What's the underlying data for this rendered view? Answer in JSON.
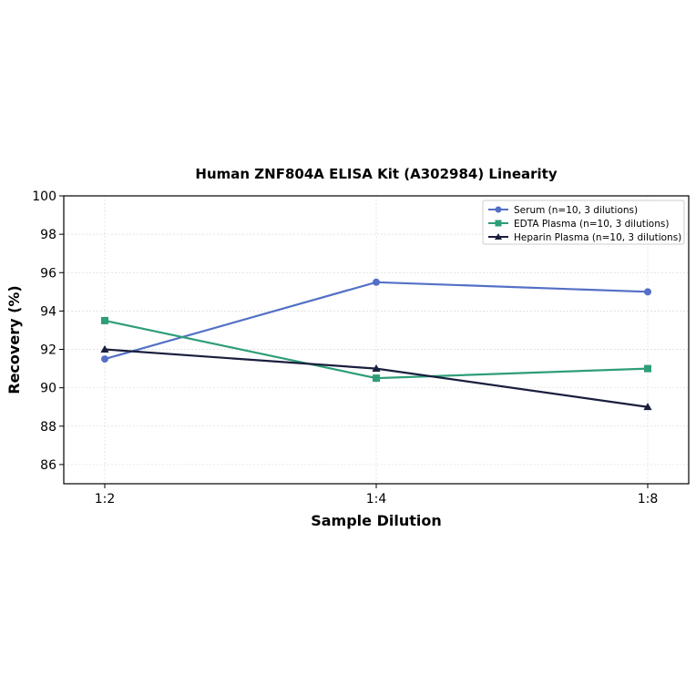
{
  "chart_data": {
    "type": "line",
    "title": "Human ZNF804A ELISA Kit (A302984) Linearity",
    "xlabel": "Sample Dilution",
    "ylabel": "Recovery (%)",
    "categories": [
      "1:2",
      "1:4",
      "1:8"
    ],
    "ylim": [
      85,
      100
    ],
    "yticks": [
      86,
      88,
      90,
      92,
      94,
      96,
      98,
      100
    ],
    "grid": true,
    "legend_position": "top-right",
    "series": [
      {
        "name": "Serum (n=10, 3 dilutions)",
        "values": [
          91.5,
          95.5,
          95.0
        ],
        "color": "#5470c6",
        "marker": "circle"
      },
      {
        "name": "EDTA Plasma (n=10, 3 dilutions)",
        "values": [
          93.5,
          90.5,
          91.0
        ],
        "color": "#2e9e77",
        "marker": "square"
      },
      {
        "name": "Heparin Plasma (n=10, 3 dilutions)",
        "values": [
          92.0,
          91.0,
          89.0
        ],
        "color": "#1a1f3d",
        "marker": "triangle"
      }
    ]
  }
}
